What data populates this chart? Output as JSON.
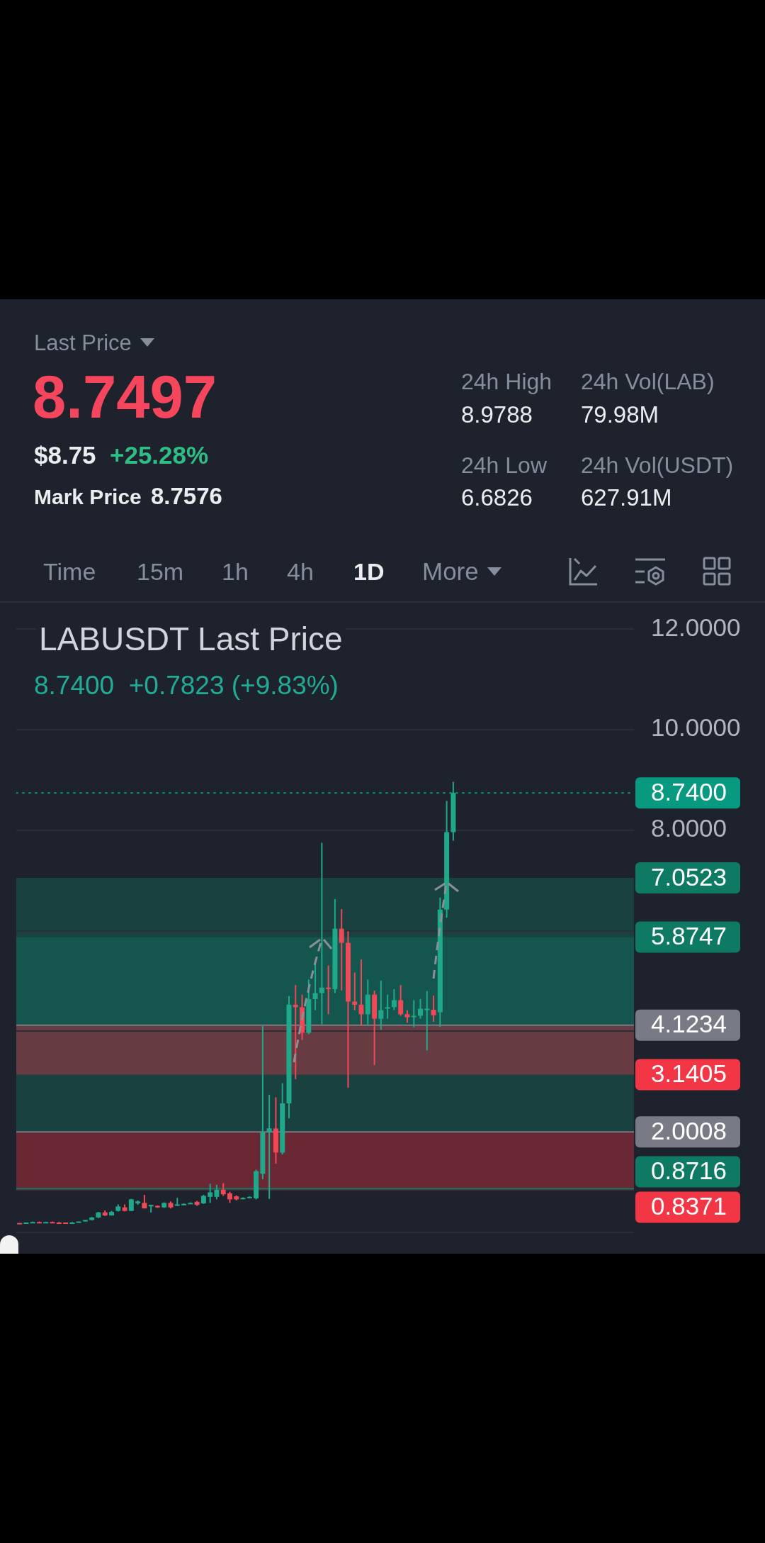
{
  "chart_data": [
    {
      "type": "other",
      "annotations": [
        "Last Price",
        "8.7497",
        "$8.75",
        "+25.28%",
        "Mark Price",
        "8.7576",
        "24h High",
        "8.9788",
        "24h Vol(LAB)",
        "79.98M",
        "24h Low",
        "6.6826",
        "24h Vol(USDT)",
        "627.91M",
        "Time",
        "15m",
        "1h",
        "4h",
        "1D",
        "More"
      ]
    },
    {
      "type": "candlestick",
      "title": "LABUSDT Last Price",
      "subtitle": "8.7400  +0.7823 (+9.83%)",
      "categories": [
        null,
        null,
        null,
        null,
        null,
        null,
        null,
        null,
        null,
        null,
        null,
        null,
        null,
        null,
        null,
        null,
        null,
        null,
        null,
        null,
        null,
        null,
        null,
        null,
        null,
        null,
        null,
        null,
        null,
        null,
        null,
        null,
        null,
        null,
        null,
        null,
        null,
        null,
        null,
        null,
        null,
        null,
        null,
        null,
        null,
        null,
        null,
        null,
        null,
        null,
        null,
        null,
        null,
        null,
        null,
        null,
        null,
        null,
        null,
        null,
        null,
        null,
        null,
        null,
        null,
        null,
        null,
        null,
        null,
        null,
        null,
        null,
        null,
        null,
        null,
        null,
        null,
        null,
        null,
        null,
        null,
        null,
        null,
        null,
        null,
        null,
        null,
        null,
        null,
        null,
        null,
        null,
        null,
        null
      ],
      "ohlc": [
        [
          0.19,
          0.19,
          0.18,
          0.18
        ],
        [
          0.18,
          0.2,
          0.18,
          0.2
        ],
        [
          0.2,
          0.22,
          0.2,
          0.21
        ],
        [
          0.21,
          0.22,
          0.2,
          0.2
        ],
        [
          0.2,
          0.21,
          0.2,
          0.21
        ],
        [
          0.21,
          0.22,
          0.2,
          0.2
        ],
        [
          0.2,
          0.21,
          0.19,
          0.19
        ],
        [
          0.2,
          0.2,
          0.19,
          0.19
        ],
        [
          0.19,
          0.21,
          0.19,
          0.2
        ],
        [
          0.2,
          0.22,
          0.2,
          0.22
        ],
        [
          0.22,
          0.25,
          0.22,
          0.25
        ],
        [
          0.25,
          0.31,
          0.24,
          0.3
        ],
        [
          0.3,
          0.41,
          0.29,
          0.4
        ],
        [
          0.4,
          0.44,
          0.33,
          0.34
        ],
        [
          0.34,
          0.43,
          0.34,
          0.41
        ],
        [
          0.43,
          0.56,
          0.42,
          0.52
        ],
        [
          0.5,
          0.56,
          0.42,
          0.43
        ],
        [
          0.43,
          0.67,
          0.43,
          0.66
        ],
        [
          0.58,
          0.64,
          0.55,
          0.62
        ],
        [
          0.59,
          0.75,
          0.48,
          0.48
        ],
        [
          0.52,
          0.55,
          0.4,
          0.55
        ],
        [
          0.53,
          0.54,
          0.49,
          0.5
        ],
        [
          0.5,
          0.6,
          0.49,
          0.59
        ],
        [
          0.59,
          0.62,
          0.48,
          0.5
        ],
        [
          0.54,
          0.69,
          0.53,
          0.56
        ],
        [
          0.56,
          0.58,
          0.55,
          0.57
        ],
        [
          0.57,
          0.6,
          0.57,
          0.59
        ],
        [
          0.61,
          0.63,
          0.53,
          0.55
        ],
        [
          0.58,
          0.75,
          0.57,
          0.73
        ],
        [
          0.71,
          0.97,
          0.59,
          0.8
        ],
        [
          0.71,
          0.95,
          0.66,
          0.85
        ],
        [
          0.85,
          0.98,
          0.73,
          0.76
        ],
        [
          0.78,
          0.81,
          0.59,
          0.66
        ],
        [
          0.72,
          0.74,
          0.64,
          0.66
        ],
        [
          0.67,
          0.7,
          0.66,
          0.69
        ],
        [
          0.69,
          0.72,
          0.68,
          0.71
        ],
        [
          0.68,
          1.25,
          0.66,
          1.22
        ],
        [
          1.17,
          4.11,
          1.06,
          1.99
        ],
        [
          1.99,
          2.74,
          0.67,
          2.07
        ],
        [
          2.07,
          2.69,
          1.37,
          1.59
        ],
        [
          1.59,
          2.97,
          1.55,
          2.57
        ],
        [
          2.57,
          4.7,
          2.27,
          4.53
        ],
        [
          4.53,
          4.92,
          3.05,
          4.48
        ],
        [
          4.48,
          4.73,
          3.83,
          3.97
        ],
        [
          3.97,
          5.03,
          3.94,
          4.64
        ],
        [
          4.64,
          5.37,
          4.42,
          4.76
        ],
        [
          4.76,
          7.75,
          4.14,
          4.87
        ],
        [
          4.87,
          5.31,
          4.34,
          4.84
        ],
        [
          4.84,
          6.63,
          4.76,
          6.04
        ],
        [
          6.04,
          6.43,
          4.81,
          5.76
        ],
        [
          5.76,
          5.99,
          2.88,
          4.59
        ],
        [
          4.59,
          5.17,
          4.42,
          4.53
        ],
        [
          4.53,
          5.43,
          4.11,
          4.34
        ],
        [
          4.34,
          5.03,
          4.11,
          4.73
        ],
        [
          4.73,
          4.81,
          3.33,
          4.25
        ],
        [
          4.25,
          5.01,
          4.03,
          4.42
        ],
        [
          4.45,
          4.73,
          4.25,
          4.48
        ],
        [
          4.48,
          4.84,
          4.42,
          4.62
        ],
        [
          4.62,
          4.92,
          4.31,
          4.34
        ],
        [
          4.34,
          4.42,
          4.17,
          4.28
        ],
        [
          4.28,
          4.62,
          4.08,
          4.31
        ],
        [
          4.31,
          4.64,
          4.25,
          4.45
        ],
        [
          4.43,
          4.8,
          3.62,
          4.45
        ],
        [
          4.43,
          4.71,
          4.19,
          4.32
        ],
        [
          4.38,
          6.66,
          4.09,
          6.42
        ],
        [
          6.42,
          8.58,
          6.26,
          7.96
        ],
        [
          7.96,
          8.96,
          7.79,
          8.74
        ],
        null,
        null,
        null,
        null,
        null,
        null,
        null,
        null,
        null,
        null,
        null,
        null,
        null,
        null,
        null,
        null,
        null,
        null,
        null,
        null,
        null,
        null,
        null,
        null,
        null,
        null,
        null
      ],
      "colors": [
        "#f04856",
        "#20a88b",
        "#20a88b",
        "#f04856",
        "#20a88b",
        "#f04856",
        "#f04856",
        "#f04856",
        "#20a88b",
        "#20a88b",
        "#20a88b",
        "#20a88b",
        "#20a88b",
        "#f04856",
        "#20a88b",
        "#20a88b",
        "#f04856",
        "#20a88b",
        "#20a88b",
        "#f04856",
        "#20a88b",
        "#f04856",
        "#20a88b",
        "#f04856",
        "#20a88b",
        "#20a88b",
        "#20a88b",
        "#f04856",
        "#20a88b",
        "#20a88b",
        "#20a88b",
        "#f04856",
        "#f04856",
        "#f04856",
        "#20a88b",
        "#20a88b",
        "#20a88b",
        "#20a88b",
        "#20a88b",
        "#f04856",
        "#20a88b",
        "#20a88b",
        "#f04856",
        "#f04856",
        "#20a88b",
        "#20a88b",
        "#20a88b",
        "#f04856",
        "#20a88b",
        "#f04856",
        "#f04856",
        "#f04856",
        "#f04856",
        "#20a88b",
        "#f04856",
        "#20a88b",
        "#20a88b",
        "#20a88b",
        "#f04856",
        "#f04856",
        "#20a88b",
        "#20a88b",
        "#20a88b",
        "#f04856",
        "#20a88b",
        "#20a88b",
        "#20a88b",
        null,
        null,
        null,
        null,
        null,
        null,
        null,
        null,
        null,
        null,
        null,
        null,
        null,
        null,
        null,
        null,
        null,
        null,
        null,
        null,
        null,
        null,
        null,
        null,
        null,
        null,
        null
      ],
      "ylim": [
        -0.42,
        12.52
      ],
      "yticks": [
        {
          "value": 0,
          "label": null
        },
        {
          "value": 2,
          "label": null
        },
        {
          "value": 4,
          "label": null
        },
        {
          "value": 6,
          "label": null
        },
        {
          "value": 8,
          "label": "8.0000"
        },
        {
          "value": 10,
          "label": "10.0000"
        },
        {
          "value": 12,
          "label": "12.0000"
        }
      ],
      "grid": "y",
      "tick_labels": "y",
      "ref_lines": [
        {
          "axis": "y",
          "value": 8.74,
          "label": "8.7400",
          "color": "#089981",
          "line_style": "dotted"
        },
        {
          "axis": "y",
          "value": 4.1234,
          "label": "4.1234",
          "color": "#787b86",
          "line_style": "solid"
        },
        {
          "axis": "y",
          "value": 2.0008,
          "label": "2.0008",
          "color": "#787b86",
          "line_style": "solid"
        },
        {
          "axis": "y",
          "value": 0.8716,
          "label": "0.8716",
          "color": "#0e7a63",
          "line_style": "solid"
        }
      ],
      "bands": [
        {
          "axis": "y",
          "from": 2.0008,
          "to": 5.8747,
          "label": "5.8747",
          "color": "#0e7a63"
        },
        {
          "axis": "y",
          "from": 2.0008,
          "to": 0.8371,
          "label": "0.8371",
          "color": "#f23645"
        },
        {
          "axis": "y",
          "from": 4.1234,
          "to": 7.0523,
          "label": "7.0523",
          "color": "#0e7a63"
        },
        {
          "axis": "y",
          "from": 4.1234,
          "to": 3.1405,
          "label": "3.1405",
          "color": "#f23645"
        }
      ]
    }
  ]
}
